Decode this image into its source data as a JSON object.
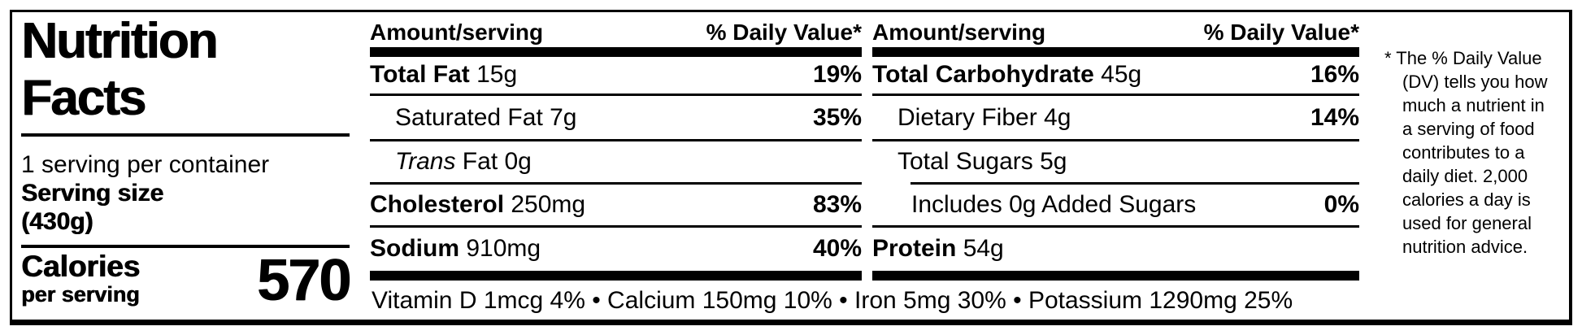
{
  "title": "Nutrition\nFacts",
  "servings_per_container": "1 serving per container",
  "serving_size_label": "Serving size",
  "serving_size_value": "(430g)",
  "calories": {
    "label": "Calories",
    "sublabel": "per serving",
    "value": "570"
  },
  "columns": [
    {
      "header_left": "Amount/serving",
      "header_right": "% Daily Value*",
      "rows": [
        {
          "label": "Total Fat ",
          "amount": "15g",
          "dv": "19%"
        },
        {
          "label": "Saturated Fat ",
          "amount": "7g",
          "dv": "35%"
        },
        {
          "label": "Trans",
          "amount": " Fat 0g",
          "dv": ""
        },
        {
          "label": "Cholesterol ",
          "amount": "250mg",
          "dv": "83%"
        },
        {
          "label": "Sodium ",
          "amount": "910mg",
          "dv": "40%"
        }
      ]
    },
    {
      "header_left": "Amount/serving",
      "header_right": "% Daily Value*",
      "rows": [
        {
          "label": "Total Carbohydrate ",
          "amount": "45g",
          "dv": "16%"
        },
        {
          "label": "Dietary Fiber ",
          "amount": "4g",
          "dv": "14%"
        },
        {
          "label": "Total Sugars ",
          "amount": "5g",
          "dv": ""
        },
        {
          "label": "Includes 0g Added Sugars",
          "amount": "",
          "dv": "0%"
        },
        {
          "label": "Protein ",
          "amount": "54g",
          "dv": ""
        }
      ]
    }
  ],
  "micronutrients": "Vitamin D 1mcg 4% • Calcium 150mg 10% • Iron 5mg 30% • Potassium 1290mg 25%",
  "footnote": "* The % Daily Value\n(DV) tells you how\nmuch a nutrient in\na serving of food\ncontributes to a\ndaily diet. 2,000\ncalories a day is\nused for general\nnutrition advice."
}
